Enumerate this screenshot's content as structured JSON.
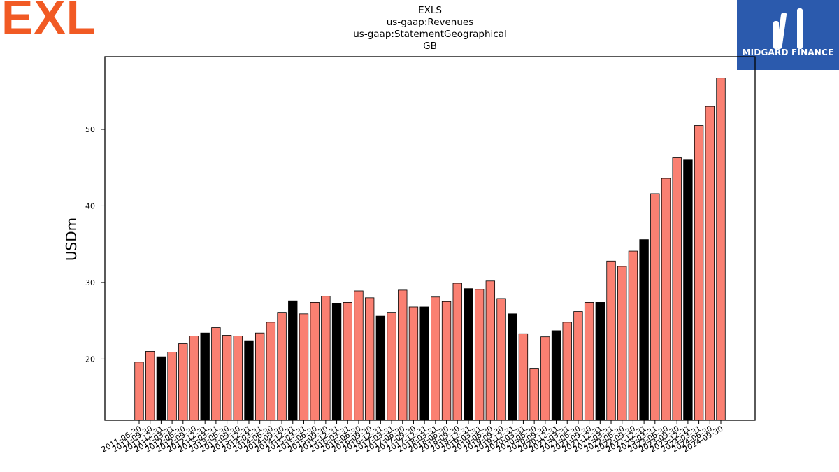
{
  "brand": {
    "text": "EXL",
    "color": "#f15a24",
    "icon": "exl-logo"
  },
  "partner": {
    "text": "MIDGARD FINANCE",
    "bg_color": "#2b5aad",
    "icon": "midgard-finance-logo"
  },
  "chart_data": {
    "type": "bar",
    "title_lines": [
      "EXLS",
      "us-gaap:Revenues",
      "us-gaap:StatementGeographical",
      "GB"
    ],
    "xlabel": "",
    "ylabel": "USDm",
    "ylim": [
      12,
      59.5
    ],
    "yticks": [
      20,
      30,
      40,
      50
    ],
    "grid": false,
    "colors": {
      "quarter": "#fa8072",
      "year_end": "#000000",
      "edge": "#000000"
    },
    "categories": [
      "2011-06-30",
      "2011-09-30",
      "2011-12-31",
      "2012-03-31",
      "2012-06-30",
      "2012-09-30",
      "2012-12-31",
      "2013-03-31",
      "2013-06-30",
      "2013-09-30",
      "2013-12-31",
      "2014-03-31",
      "2014-06-30",
      "2014-09-30",
      "2014-12-31",
      "2015-03-31",
      "2015-06-30",
      "2015-09-30",
      "2015-12-31",
      "2016-03-31",
      "2016-06-30",
      "2016-09-30",
      "2016-12-31",
      "2017-03-31",
      "2017-06-30",
      "2017-09-30",
      "2017-12-31",
      "2018-03-31",
      "2018-06-30",
      "2018-09-30",
      "2018-12-31",
      "2019-03-31",
      "2019-06-30",
      "2019-09-30",
      "2019-12-31",
      "2020-03-31",
      "2020-06-30",
      "2020-09-30",
      "2020-12-31",
      "2021-03-31",
      "2021-06-30",
      "2021-09-30",
      "2021-12-31",
      "2022-03-31",
      "2022-06-30",
      "2022-09-30",
      "2022-12-31",
      "2023-03-31",
      "2023-06-30",
      "2023-09-30",
      "2023-12-31",
      "2024-03-31",
      "2024-06-30",
      "2024-09-30"
    ],
    "values": [
      19.6,
      21.0,
      20.3,
      20.9,
      22.0,
      23.0,
      23.4,
      24.1,
      23.1,
      23.0,
      22.4,
      23.4,
      24.8,
      26.1,
      27.6,
      25.9,
      27.4,
      28.2,
      27.3,
      27.4,
      28.9,
      28.0,
      25.6,
      26.1,
      29.0,
      26.8,
      26.8,
      28.1,
      27.5,
      29.9,
      29.2,
      29.1,
      30.2,
      27.9,
      25.9,
      23.3,
      18.8,
      22.9,
      23.7,
      24.8,
      26.2,
      27.4,
      27.4,
      32.8,
      32.1,
      34.1,
      35.6,
      41.6,
      43.6,
      46.3,
      46.0,
      50.5,
      53.0,
      56.7
    ],
    "year_end_flags": [
      false,
      false,
      true,
      false,
      false,
      false,
      true,
      false,
      false,
      false,
      true,
      false,
      false,
      false,
      true,
      false,
      false,
      false,
      true,
      false,
      false,
      false,
      true,
      false,
      false,
      false,
      true,
      false,
      false,
      false,
      true,
      false,
      false,
      false,
      true,
      false,
      false,
      false,
      true,
      false,
      false,
      false,
      true,
      false,
      false,
      false,
      true,
      false,
      false,
      false,
      true,
      false,
      false,
      false
    ]
  }
}
